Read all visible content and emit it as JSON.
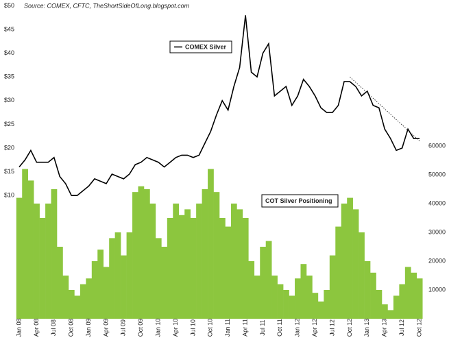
{
  "chart_data": {
    "type": "bar-line",
    "source": "Source: COMEX, CFTC, TheShortSideOfLong.blogspot.com",
    "categories": [
      "Jan 08",
      null,
      null,
      "Apr 08",
      null,
      null,
      "Jul 08",
      null,
      null,
      "Oct 08",
      null,
      null,
      "Jan 09",
      null,
      null,
      "Apr 09",
      null,
      null,
      "Jul 09",
      null,
      null,
      "Oct 09",
      null,
      null,
      "Jan 10",
      null,
      null,
      "Apr 10",
      null,
      null,
      "Jul 10",
      null,
      null,
      "Oct 10",
      null,
      null,
      "Jan 11",
      null,
      null,
      "Apr 11",
      null,
      null,
      "Jul 11",
      null,
      null,
      "Oct 11",
      null,
      null,
      "Jan 12",
      null,
      null,
      "Apr 12",
      null,
      null,
      "Jul 12",
      null,
      null,
      "Oct 12",
      null,
      null,
      "Jan 13",
      null,
      null,
      "Apr 13",
      null,
      null,
      "Jul 12",
      null,
      null,
      "Oct 12"
    ],
    "series": [
      {
        "name": "COMEX Silver",
        "color": "#000000",
        "axis": "y",
        "kind": "line",
        "values": [
          16,
          17.5,
          19.5,
          17,
          17,
          17,
          18,
          14,
          12.5,
          10,
          10,
          11,
          12,
          13.5,
          13,
          12.5,
          14.5,
          14,
          13.5,
          14.5,
          16.5,
          17,
          18,
          17.5,
          17,
          16,
          17,
          18,
          18.5,
          18.5,
          18,
          18.5,
          21,
          23.5,
          27,
          30,
          28,
          33,
          37,
          48,
          36,
          35,
          40,
          42,
          31,
          32,
          33,
          29,
          31,
          34.5,
          33,
          31,
          28.5,
          27.5,
          27.5,
          29,
          34,
          34,
          33,
          31,
          32,
          29,
          28.5,
          24,
          22,
          19.5,
          20,
          24,
          22,
          22
        ]
      },
      {
        "name": "COT Silver Positioning",
        "color": "#8cc63e",
        "axis": "y2",
        "kind": "bar",
        "values": [
          42000,
          52000,
          48000,
          40000,
          35000,
          40000,
          45000,
          25000,
          15000,
          10000,
          8000,
          12000,
          14000,
          20000,
          24000,
          18000,
          28000,
          30000,
          22000,
          30000,
          44000,
          46000,
          45000,
          40000,
          28000,
          25000,
          35000,
          40000,
          36000,
          38000,
          35000,
          40000,
          45000,
          52000,
          44000,
          35000,
          32000,
          40000,
          38000,
          35000,
          20000,
          15000,
          25000,
          27000,
          15000,
          12000,
          10000,
          8000,
          14000,
          19000,
          15000,
          9000,
          6000,
          10000,
          22000,
          32000,
          40000,
          42000,
          38000,
          30000,
          20000,
          16000,
          10000,
          5000,
          3000,
          8000,
          12000,
          18000,
          16000,
          14000
        ]
      }
    ],
    "trendline": {
      "x": [
        57,
        69
      ],
      "values": [
        35,
        21.5
      ]
    },
    "ylim": [
      -16,
      50.5
    ],
    "yticks": [
      {
        "value": 10,
        "label": "$10"
      },
      {
        "value": 15,
        "label": "$15"
      },
      {
        "value": 20,
        "label": "$20"
      },
      {
        "value": 25,
        "label": "$25"
      },
      {
        "value": 30,
        "label": "$30"
      },
      {
        "value": 35,
        "label": "$35"
      },
      {
        "value": 40,
        "label": "$40"
      },
      {
        "value": 45,
        "label": "$45"
      },
      {
        "value": 50,
        "label": "$50"
      }
    ],
    "y2lim": [
      0,
      109500
    ],
    "y2ticks": [
      10000,
      20000,
      30000,
      40000,
      50000,
      60000
    ]
  }
}
